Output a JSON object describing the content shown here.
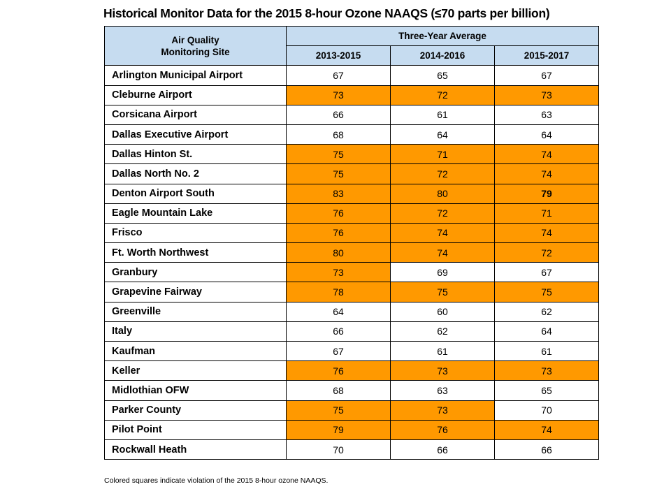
{
  "title": "Historical Monitor Data for the 2015 8-hour Ozone NAAQS (≤70 parts per billion)",
  "header": {
    "site_label_line1": "Air Quality",
    "site_label_line2": "Monitoring Site",
    "group_label": "Three-Year Average",
    "periods": [
      "2013-2015",
      "2014-2016",
      "2015-2017"
    ]
  },
  "colors": {
    "header_bg": "#c6dcf0",
    "violation": "#ff9900"
  },
  "footnote": "Colored squares indicate violation of the 2015 8-hour ozone NAAQS.",
  "chart_data": {
    "type": "table",
    "title": "Historical Monitor Data for the 2015 8-hour Ozone NAAQS (≤70 parts per billion)",
    "threshold": 70,
    "columns": [
      "2013-2015",
      "2014-2016",
      "2015-2017"
    ],
    "rows": [
      {
        "site": "Arlington Municipal Airport",
        "values": [
          67,
          65,
          67
        ],
        "violation": [
          false,
          false,
          false
        ]
      },
      {
        "site": "Cleburne Airport",
        "values": [
          73,
          72,
          73
        ],
        "violation": [
          true,
          true,
          true
        ]
      },
      {
        "site": "Corsicana Airport",
        "values": [
          66,
          61,
          63
        ],
        "violation": [
          false,
          false,
          false
        ]
      },
      {
        "site": "Dallas Executive Airport",
        "values": [
          68,
          64,
          64
        ],
        "violation": [
          false,
          false,
          false
        ]
      },
      {
        "site": "Dallas Hinton St.",
        "values": [
          75,
          71,
          74
        ],
        "violation": [
          true,
          true,
          true
        ]
      },
      {
        "site": "Dallas North No. 2",
        "values": [
          75,
          72,
          74
        ],
        "violation": [
          true,
          true,
          true
        ]
      },
      {
        "site": "Denton Airport South",
        "values": [
          83,
          80,
          79
        ],
        "violation": [
          true,
          true,
          true
        ],
        "bold": [
          false,
          false,
          true
        ]
      },
      {
        "site": "Eagle Mountain Lake",
        "values": [
          76,
          72,
          71
        ],
        "violation": [
          true,
          true,
          true
        ]
      },
      {
        "site": "Frisco",
        "values": [
          76,
          74,
          74
        ],
        "violation": [
          true,
          true,
          true
        ]
      },
      {
        "site": "Ft. Worth Northwest",
        "values": [
          80,
          74,
          72
        ],
        "violation": [
          true,
          true,
          true
        ]
      },
      {
        "site": "Granbury",
        "values": [
          73,
          69,
          67
        ],
        "violation": [
          true,
          false,
          false
        ]
      },
      {
        "site": "Grapevine Fairway",
        "values": [
          78,
          75,
          75
        ],
        "violation": [
          true,
          true,
          true
        ]
      },
      {
        "site": "Greenville",
        "values": [
          64,
          60,
          62
        ],
        "violation": [
          false,
          false,
          false
        ]
      },
      {
        "site": "Italy",
        "values": [
          66,
          62,
          64
        ],
        "violation": [
          false,
          false,
          false
        ]
      },
      {
        "site": "Kaufman",
        "values": [
          67,
          61,
          61
        ],
        "violation": [
          false,
          false,
          false
        ]
      },
      {
        "site": "Keller",
        "values": [
          76,
          73,
          73
        ],
        "violation": [
          true,
          true,
          true
        ]
      },
      {
        "site": "Midlothian OFW",
        "values": [
          68,
          63,
          65
        ],
        "violation": [
          false,
          false,
          false
        ]
      },
      {
        "site": "Parker County",
        "values": [
          75,
          73,
          70
        ],
        "violation": [
          true,
          true,
          false
        ]
      },
      {
        "site": "Pilot Point",
        "values": [
          79,
          76,
          74
        ],
        "violation": [
          true,
          true,
          true
        ]
      },
      {
        "site": "Rockwall Heath",
        "values": [
          70,
          66,
          66
        ],
        "violation": [
          false,
          false,
          false
        ]
      }
    ]
  }
}
